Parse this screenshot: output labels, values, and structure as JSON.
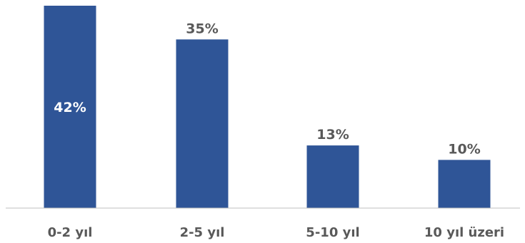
{
  "chart_data": {
    "type": "bar",
    "categories": [
      "0-2 yıl",
      "2-5 yıl",
      "5-10 yıl",
      "10 yıl üzeri"
    ],
    "values": [
      42,
      35,
      13,
      10
    ],
    "value_labels": [
      "42%",
      "35%",
      "13%",
      "10%"
    ],
    "ylim": [
      0,
      42
    ],
    "grid": false,
    "legend": "none"
  },
  "colors": {
    "bar": "#2F5597",
    "axis": "#BFBFBF",
    "label_dark": "#595959",
    "label_inside": "#FFFFFF"
  }
}
